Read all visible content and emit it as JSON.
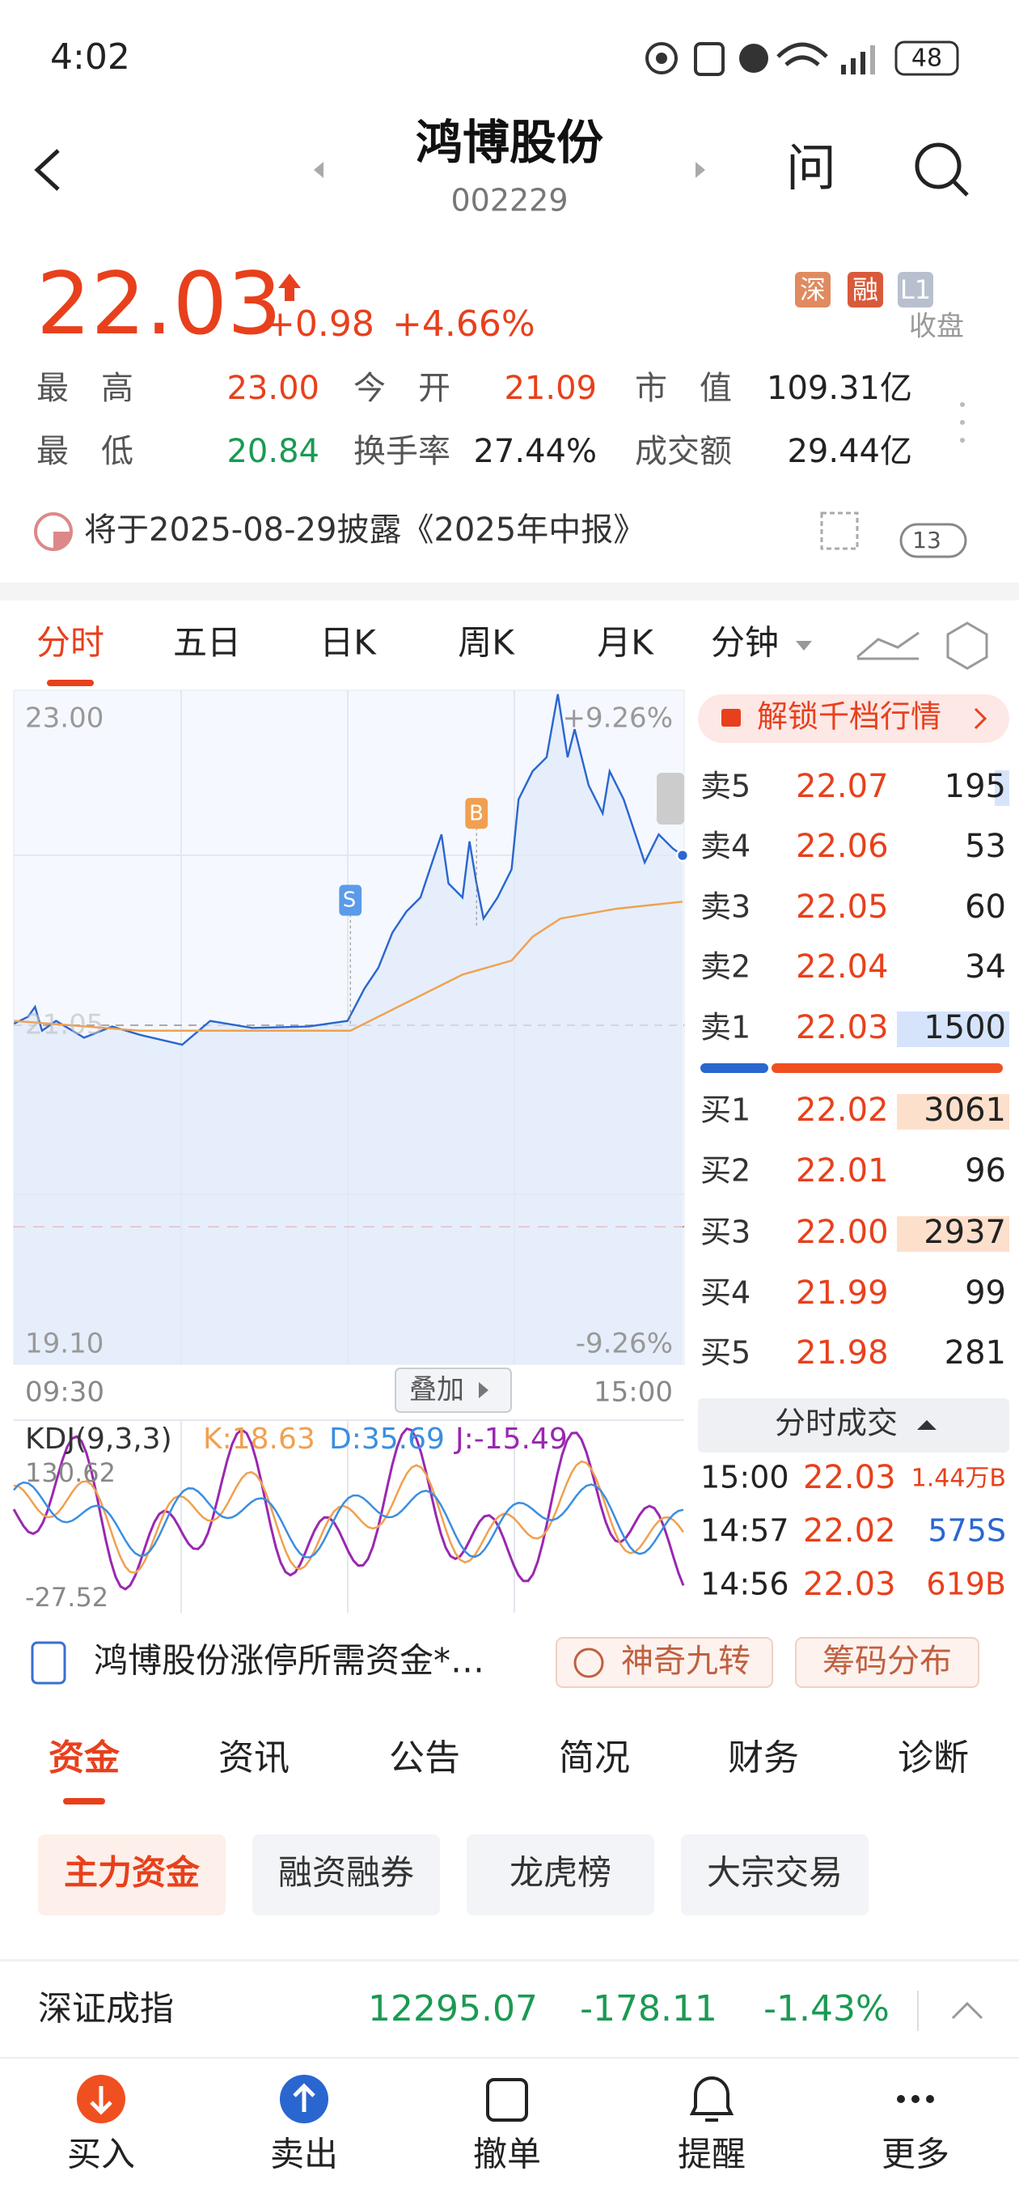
{
  "status_bar": {
    "time": "4:02",
    "battery": "48"
  },
  "header": {
    "title": "鸿博股份",
    "code": "002229",
    "ask": "问"
  },
  "quote": {
    "price": "22.03",
    "change": "+0.98",
    "change_pct": "+4.66%",
    "tags": [
      "深",
      "融",
      "L1"
    ],
    "status": "收盘",
    "stats": [
      {
        "label": "最　高",
        "value": "23.00"
      },
      {
        "label": "今　开",
        "value": "21.09"
      },
      {
        "label": "市　值",
        "value": "109.31亿"
      },
      {
        "label": "最　低",
        "value": "20.84"
      },
      {
        "label": "换手率",
        "value": "27.44%"
      },
      {
        "label": "成交额",
        "value": "29.44亿"
      }
    ]
  },
  "notice": {
    "text": "将于2025-08-29披露《2025年中报》",
    "count": "13"
  },
  "chart_tabs": [
    "分时",
    "五日",
    "日K",
    "周K",
    "月K",
    "分钟"
  ],
  "intraday": {
    "y_high": "23.00",
    "y_low": "19.10",
    "pct_high": "+9.26%",
    "pct_low": "-9.26%",
    "mid": "21.05",
    "time_start": "09:30",
    "time_end": "15:00",
    "overlay": "叠加",
    "markers": [
      "S",
      "B"
    ]
  },
  "kdj": {
    "name": "KDJ(9,3,3)",
    "k": "K:18.63",
    "d": "D:35.69",
    "j": "J:-15.49",
    "max": "130.62",
    "min": "-27.52"
  },
  "order_book": {
    "unlock": "解锁千档行情",
    "asks": [
      {
        "label": "卖5",
        "price": "22.07",
        "volume": "195"
      },
      {
        "label": "卖4",
        "price": "22.06",
        "volume": "53"
      },
      {
        "label": "卖3",
        "price": "22.05",
        "volume": "60"
      },
      {
        "label": "卖2",
        "price": "22.04",
        "volume": "34"
      },
      {
        "label": "卖1",
        "price": "22.03",
        "volume": "1500"
      }
    ],
    "bids": [
      {
        "label": "买1",
        "price": "22.02",
        "volume": "3061"
      },
      {
        "label": "买2",
        "price": "22.01",
        "volume": "96"
      },
      {
        "label": "买3",
        "price": "22.00",
        "volume": "2937"
      },
      {
        "label": "买4",
        "price": "21.99",
        "volume": "99"
      },
      {
        "label": "买5",
        "price": "21.98",
        "volume": "281"
      }
    ]
  },
  "trades": {
    "title": "分时成交",
    "rows": [
      {
        "time": "15:00",
        "price": "22.03",
        "volume": "1.44万B"
      },
      {
        "time": "14:57",
        "price": "22.02",
        "volume": "575S"
      },
      {
        "time": "14:56",
        "price": "22.03",
        "volume": "619B"
      }
    ]
  },
  "tools": {
    "limit_up": "鸿博股份涨停所需资金*…",
    "nine": "神奇九转",
    "chips": "筹码分布"
  },
  "section_tabs": [
    "资金",
    "资讯",
    "公告",
    "简况",
    "财务",
    "诊断"
  ],
  "sub_tabs": [
    "主力资金",
    "融资融券",
    "龙虎榜",
    "大宗交易"
  ],
  "index_bar": {
    "name": "深证成指",
    "value": "12295.07",
    "change": "-178.11",
    "pct": "-1.43%"
  },
  "bottom_nav": [
    "买入",
    "卖出",
    "撤单",
    "提醒",
    "更多"
  ]
}
